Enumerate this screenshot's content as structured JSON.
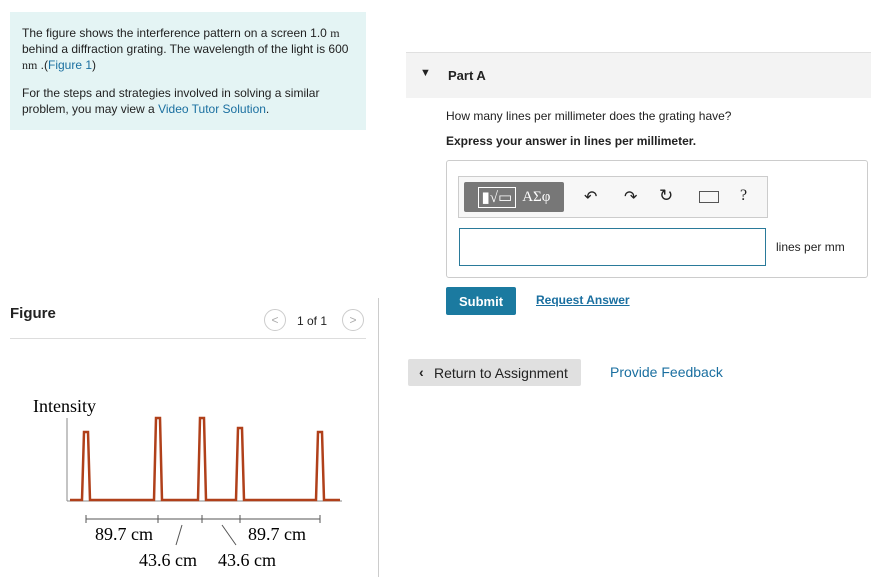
{
  "problem": {
    "intro": [
      "The figure shows the interference pattern on a screen 1.0 ",
      "m",
      " behind a diffraction grating. The wavelength of the light is 600 ",
      "nm",
      " .(",
      "Figure 1",
      ")"
    ],
    "strategy": [
      "For the steps and strategies involved in solving a similar problem, you may view a ",
      "Video Tutor Solution",
      "."
    ]
  },
  "figure": {
    "title": "Figure",
    "pager": "1 of 1",
    "y_label": "Intensity",
    "labels": [
      "89.7 cm",
      "89.7 cm",
      "43.6 cm",
      "43.6 cm"
    ]
  },
  "part": {
    "title": "Part A",
    "question": "How many lines per millimeter does the grating have?",
    "instruction": "Express your answer in lines per millimeter.",
    "toolbar": {
      "symbols": "ΑΣφ",
      "help": "?"
    },
    "unit": "lines per mm",
    "submit": "Submit",
    "request": "Request Answer"
  },
  "footer": {
    "return": "Return to Assignment",
    "feedback": "Provide Feedback"
  }
}
